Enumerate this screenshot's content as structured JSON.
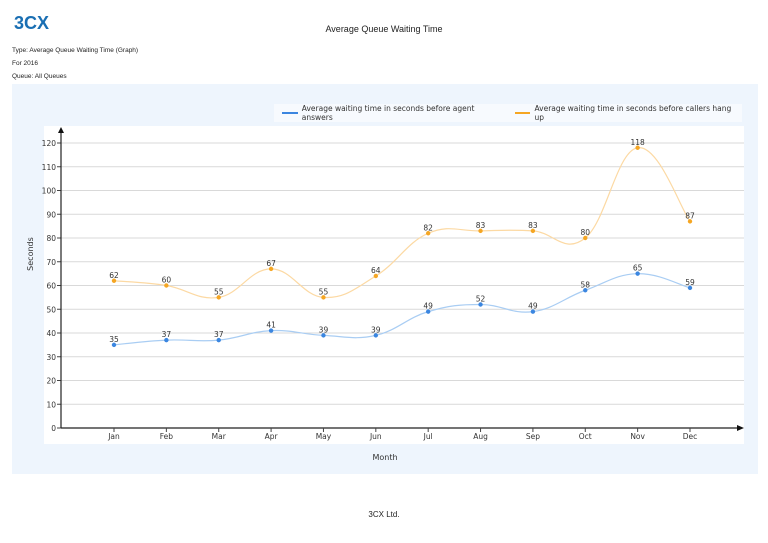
{
  "header": {
    "logo_text": "3CX",
    "title": "Average Queue Waiting Time",
    "type_line": "Type: Average Queue Waiting Time (Graph)",
    "period_line": "For 2016",
    "queue_line": "Queue: All Queues"
  },
  "footer": {
    "company": "3CX Ltd."
  },
  "colors": {
    "agent_answers": "#3b86e0",
    "callers_hang_up": "#f5a623",
    "panel_bg": "#eef5fd",
    "gridline": "#d9d9d9",
    "axis": "#222222"
  },
  "legend": {
    "items": [
      {
        "label": "Average waiting time in seconds before agent answers",
        "color": "#3b86e0"
      },
      {
        "label": "Average waiting time in seconds before callers hang up",
        "color": "#f5a623"
      }
    ]
  },
  "chart_data": {
    "type": "line",
    "title": "Average Queue Waiting Time",
    "xlabel": "Month",
    "ylabel": "Seconds",
    "categories": [
      "Jan",
      "Feb",
      "Mar",
      "Apr",
      "May",
      "Jun",
      "Jul",
      "Aug",
      "Sep",
      "Oct",
      "Nov",
      "Dec"
    ],
    "series": [
      {
        "name": "Average waiting time in seconds before agent answers",
        "color": "#3b86e0",
        "values": [
          35,
          37,
          37,
          41,
          39,
          39,
          49,
          52,
          49,
          58,
          65,
          59
        ]
      },
      {
        "name": "Average waiting time in seconds before callers hang up",
        "color": "#f5a623",
        "values": [
          62,
          60,
          55,
          67,
          55,
          64,
          82,
          83,
          83,
          80,
          118,
          87
        ]
      }
    ],
    "ylim": [
      0,
      120
    ],
    "yticks": [
      0,
      10,
      20,
      30,
      40,
      50,
      60,
      70,
      80,
      90,
      100,
      110,
      120
    ],
    "grid": true,
    "smooth": true,
    "data_labels": true,
    "legend_position": "top-right"
  }
}
